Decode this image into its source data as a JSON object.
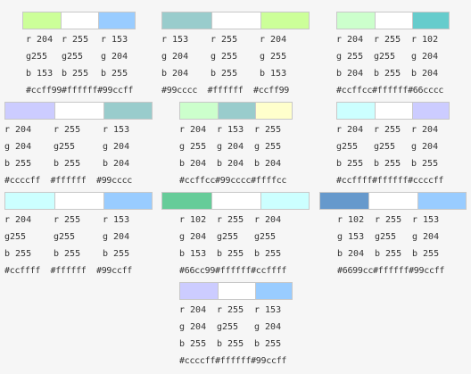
{
  "combos": [
    {
      "colors": [
        "#ccff99",
        "#ffffff",
        "#99ccff"
      ],
      "rows": [
        [
          "r 204",
          "r 255",
          "r 153"
        ],
        [
          "g255",
          "g255",
          "g 204"
        ],
        [
          "b 153",
          "b 255",
          "b 255"
        ]
      ],
      "hex": "#ccff99#ffffff#99ccff"
    },
    {
      "colors": [
        "#99cccc",
        "#ffffff",
        "#ccff99"
      ],
      "rows": [
        [
          "r 153",
          "r 255",
          "r 204"
        ],
        [
          "g 204",
          "g 255",
          "g 255"
        ],
        [
          "b 204",
          "b 255",
          "b 153"
        ]
      ],
      "hex": "#99cccc  #ffffff  #ccff99"
    },
    {
      "colors": [
        "#ccffcc",
        "#ffffff",
        "#66cccc"
      ],
      "rows": [
        [
          "r 204",
          "r 255",
          "r 102"
        ],
        [
          "g 255",
          "g255",
          "g 204"
        ],
        [
          "b 204",
          "b 255",
          "b 204"
        ]
      ],
      "hex": "#ccffcc#ffffff#66cccc"
    },
    {
      "colors": [
        "#ccccff",
        "#ffffff",
        "#99cccc"
      ],
      "rows": [
        [
          "r 204",
          "r 255",
          "r 153"
        ],
        [
          "g 204",
          "g255",
          "g 204"
        ],
        [
          "b 255",
          "b 255",
          "b 204"
        ]
      ],
      "hex": "#ccccff  #ffffff  #99cccc"
    },
    {
      "colors": [
        "#ccffcc",
        "#99cccc",
        "#ffffcc"
      ],
      "rows": [
        [
          "r 204",
          "r 153",
          "r 255"
        ],
        [
          "g 255",
          "g 204",
          "g 255"
        ],
        [
          "b 204",
          "b 204",
          "b 204"
        ]
      ],
      "hex": "#ccffcc#99cccc#ffffcc"
    },
    {
      "colors": [
        "#ccffff",
        "#ffffff",
        "#ccccff"
      ],
      "rows": [
        [
          "r 204",
          "r 255",
          "r 204"
        ],
        [
          "g255",
          "g255",
          "g 204"
        ],
        [
          "b 255",
          "b 255",
          "b 255"
        ]
      ],
      "hex": "#ccffff#ffffff#ccccff"
    },
    {
      "colors": [
        "#ccffff",
        "#ffffff",
        "#99ccff"
      ],
      "rows": [
        [
          "r 204",
          "r 255",
          "r 153"
        ],
        [
          "g255",
          "g255",
          "g 204"
        ],
        [
          "b 255",
          "b 255",
          "b 255"
        ]
      ],
      "hex": "#ccffff  #ffffff  #99ccff"
    },
    {
      "colors": [
        "#66cc99",
        "#ffffff",
        "#ccffff"
      ],
      "rows": [
        [
          "r 102",
          "r 255",
          "r 204"
        ],
        [
          "g 204",
          "g255",
          "g255"
        ],
        [
          "b 153",
          "b 255",
          "b 255"
        ]
      ],
      "hex": "#66cc99#ffffff#ccffff"
    },
    {
      "colors": [
        "#6699cc",
        "#ffffff",
        "#99ccff"
      ],
      "rows": [
        [
          "r 102",
          "r 255",
          "r 153"
        ],
        [
          "g 153",
          "g255",
          "g 204"
        ],
        [
          "b 204",
          "b 255",
          "b 255"
        ]
      ],
      "hex": "#6699cc#ffffff#99ccff"
    },
    {
      "colors": [
        "#ccccff",
        "#ffffff",
        "#99ccff"
      ],
      "rows": [
        [
          "r 204",
          "r 255",
          "r 153"
        ],
        [
          "g 204",
          "g255",
          "g 204"
        ],
        [
          "b 255",
          "b 255",
          "b 255"
        ]
      ],
      "hex": "#ccccff#ffffff#99ccff"
    }
  ]
}
